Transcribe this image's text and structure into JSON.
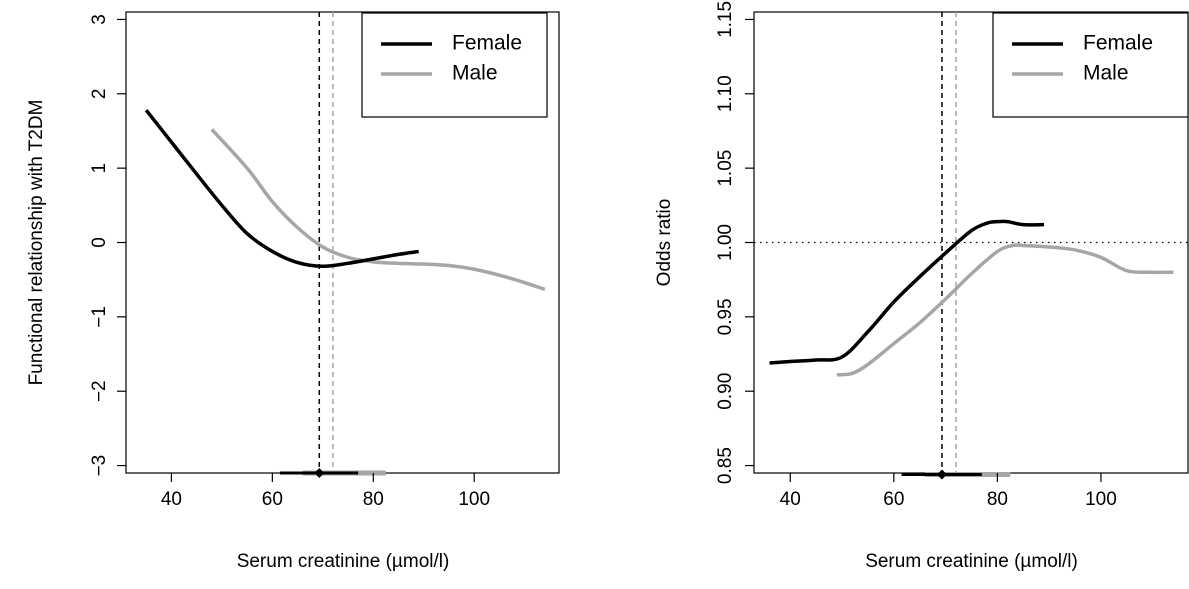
{
  "colors": {
    "female": "#000000",
    "male": "#A6A6A6",
    "axis": "#000000",
    "background": "#ffffff"
  },
  "chart_data": [
    {
      "type": "line",
      "xlabel": "Serum creatinine (µmol/l)",
      "ylabel": "Functional relationship with T2DM",
      "xlim": [
        31,
        117
      ],
      "ylim": [
        -3.1,
        3.1
      ],
      "x_ticks": [
        40,
        60,
        80,
        100
      ],
      "y_ticks": [
        -3,
        -2,
        -1,
        0,
        1,
        2,
        3
      ],
      "x_tick_labels": [
        "40",
        "60",
        "80",
        "100"
      ],
      "y_tick_labels": [
        "−3",
        "−2",
        "−1",
        "0",
        "1",
        "2",
        "3"
      ],
      "legend": {
        "position": "top-right",
        "entries": [
          "Female",
          "Male"
        ]
      },
      "series": [
        {
          "name": "Female",
          "color": "#000000",
          "x": [
            35,
            40,
            45,
            50,
            55,
            60,
            65,
            70,
            75,
            80,
            85,
            89
          ],
          "y": [
            1.78,
            1.35,
            0.92,
            0.5,
            0.12,
            -0.12,
            -0.27,
            -0.32,
            -0.28,
            -0.22,
            -0.16,
            -0.12
          ]
        },
        {
          "name": "Male",
          "color": "#A6A6A6",
          "x": [
            48,
            55,
            60,
            65,
            70,
            75,
            80,
            85,
            90,
            95,
            100,
            105,
            110,
            114
          ],
          "y": [
            1.52,
            1.0,
            0.55,
            0.2,
            -0.06,
            -0.2,
            -0.26,
            -0.28,
            -0.29,
            -0.31,
            -0.36,
            -0.44,
            -0.54,
            -0.63
          ]
        }
      ],
      "reference_lines": {
        "vertical": [
          {
            "x": 69.3,
            "color": "#000000"
          },
          {
            "x": 72,
            "color": "#A6A6A6"
          }
        ]
      },
      "intervals": {
        "y": -3.1,
        "female": {
          "low": 61.5,
          "high": 77,
          "point": 69.3,
          "color": "#000000"
        },
        "male": {
          "low": 66,
          "high": 82.5,
          "color": "#A6A6A6"
        }
      }
    },
    {
      "type": "line",
      "xlabel": "Serum creatinine (µmol/l)",
      "ylabel": "Odds ratio",
      "xlim": [
        33,
        117
      ],
      "ylim": [
        0.845,
        1.155
      ],
      "x_ticks": [
        40,
        60,
        80,
        100
      ],
      "y_ticks": [
        0.85,
        0.9,
        0.95,
        1.0,
        1.05,
        1.1,
        1.15
      ],
      "x_tick_labels": [
        "40",
        "60",
        "80",
        "100"
      ],
      "y_tick_labels": [
        "0.85",
        "0.90",
        "0.95",
        "1.00",
        "1.05",
        "1.10",
        "1.15"
      ],
      "legend": {
        "position": "top-right",
        "entries": [
          "Female",
          "Male"
        ]
      },
      "series": [
        {
          "name": "Female",
          "color": "#000000",
          "x": [
            36,
            40,
            45,
            50,
            55,
            60,
            65,
            70,
            75,
            78,
            80,
            82,
            85,
            89
          ],
          "y": [
            0.919,
            0.92,
            0.921,
            0.923,
            0.94,
            0.96,
            0.977,
            0.993,
            1.008,
            1.013,
            1.014,
            1.014,
            1.012,
            1.012
          ]
        },
        {
          "name": "Male",
          "color": "#A6A6A6",
          "x": [
            49,
            52,
            55,
            60,
            65,
            70,
            75,
            80,
            83,
            85,
            90,
            95,
            100,
            105,
            110,
            114
          ],
          "y": [
            0.911,
            0.912,
            0.918,
            0.932,
            0.946,
            0.962,
            0.979,
            0.994,
            0.998,
            0.998,
            0.997,
            0.995,
            0.99,
            0.981,
            0.98,
            0.98
          ]
        }
      ],
      "reference_lines": {
        "horizontal": [
          {
            "y": 1.0,
            "style": "dotted"
          }
        ],
        "vertical": [
          {
            "x": 69.3,
            "color": "#000000"
          },
          {
            "x": 72,
            "color": "#A6A6A6"
          }
        ]
      },
      "intervals": {
        "y": 0.844,
        "female": {
          "low": 61.5,
          "high": 77,
          "point": 69.3,
          "color": "#000000"
        },
        "male": {
          "low": 66,
          "high": 82.5,
          "color": "#A6A6A6"
        }
      }
    }
  ]
}
